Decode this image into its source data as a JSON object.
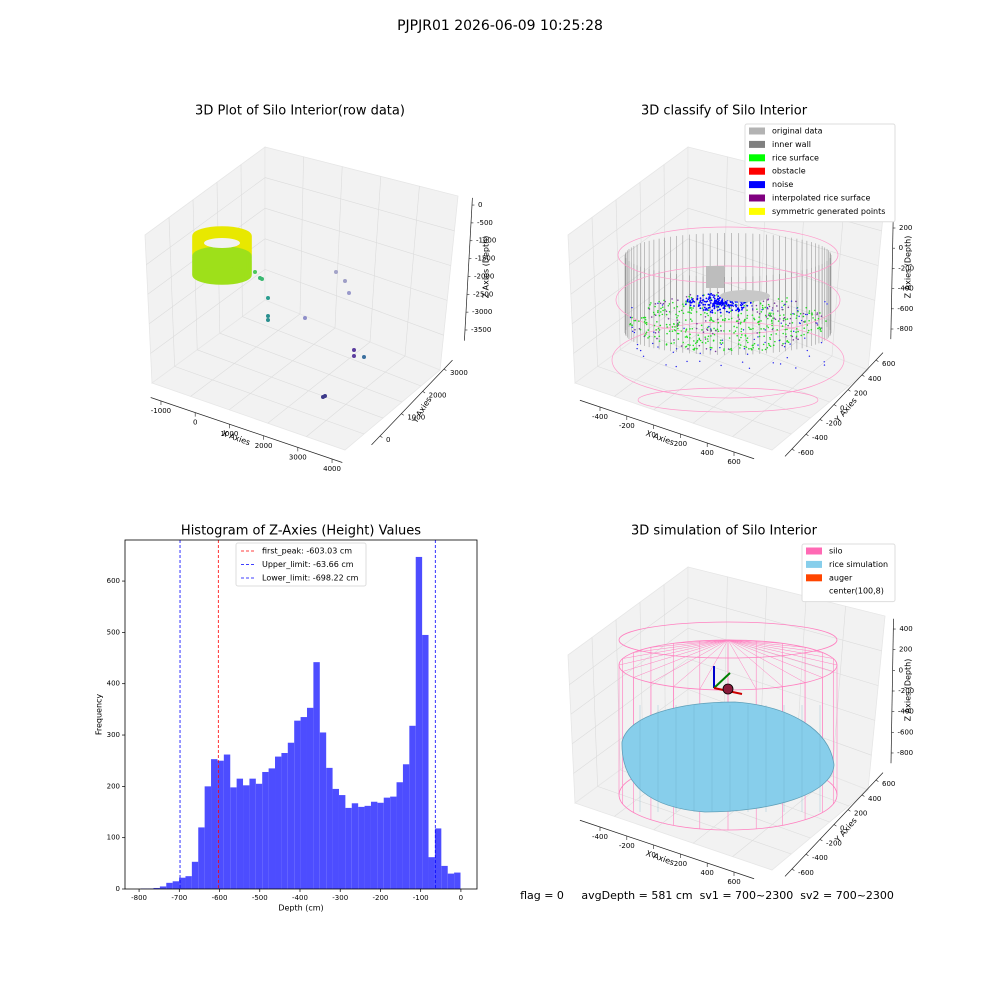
{
  "title": "PJPJR01 2026-06-09 10:25:28",
  "footer": "flag = 0     avgDepth = 581 cm  sv1 = 700~2300  sv2 = 700~2300",
  "chart_data": [
    {
      "type": "scatter3d",
      "title": "3D Plot of Silo Interior(row data)",
      "xlabel": "X Axies",
      "ylabel": "Y Axies",
      "zlabel": "Z Axies (Depth)",
      "xlim": [
        -1300,
        4300
      ],
      "xticks": [
        -1000,
        0,
        1000,
        2000,
        3000,
        4000
      ],
      "ylim": [
        -400,
        3400
      ],
      "yticks": [
        0,
        1000,
        2000,
        3000
      ],
      "zlim": [
        -3800,
        200
      ],
      "zticks": [
        0,
        -500,
        -1000,
        -1500,
        -2000,
        -2500,
        -3000,
        -3500
      ]
    },
    {
      "type": "scatter3d",
      "title": "3D classify of Silo Interior",
      "xlabel": "X Axies",
      "ylabel": "Y Axies",
      "zlabel": "Z Axies (Depth)",
      "xlim": [
        -550,
        750
      ],
      "xticks": [
        -400,
        -200,
        0,
        200,
        400,
        600
      ],
      "ylim": [
        -700,
        700
      ],
      "yticks": [
        -600,
        -400,
        -200,
        0,
        200,
        400,
        600
      ],
      "zlim": [
        -900,
        300
      ],
      "zticks": [
        200,
        0,
        -200,
        -400,
        -600,
        -800
      ],
      "legend": [
        {
          "name": "original data",
          "color": "#b3b3b3"
        },
        {
          "name": "inner wall",
          "color": "#808080"
        },
        {
          "name": "rice surface",
          "color": "#00ff00"
        },
        {
          "name": "obstacle",
          "color": "#ff0000"
        },
        {
          "name": "noise",
          "color": "#0000ff"
        },
        {
          "name": "interpolated rice surface",
          "color": "#800080"
        },
        {
          "name": "symmetric generated points",
          "color": "#ffff00"
        }
      ]
    },
    {
      "type": "histogram",
      "title": "Histogram of Z-Axies (Height) Values",
      "xlabel": "Depth (cm)",
      "ylabel": "Frequency",
      "color": "#4d4dff",
      "bins": [
        -796,
        -780.1,
        -764.2,
        -748.3,
        -732.4,
        -716.5,
        -700.6,
        -684.7,
        -668.8,
        -652.9,
        -637,
        -621.1,
        -605.2,
        -589.3,
        -573.4,
        -557.5,
        -541.6,
        -525.7,
        -509.8,
        -493.9,
        -478,
        -462.1,
        -446.2,
        -430.3,
        -414.4,
        -398.5,
        -382.6,
        -366.7,
        -350.8,
        -334.9,
        -319,
        -303.1,
        -287.2,
        -271.3,
        -255.4,
        -239.5,
        -223.6,
        -207.7,
        -191.8,
        -175.9,
        -160,
        -144.1,
        -128.2,
        -112.3,
        -96.4,
        -80.5,
        -64.6,
        -48.7,
        -32.8,
        -16.9,
        -1
      ],
      "values": [
        1,
        1,
        2,
        5,
        12,
        15,
        22,
        25,
        53,
        120,
        200,
        253,
        250,
        262,
        198,
        215,
        202,
        215,
        205,
        228,
        235,
        258,
        265,
        285,
        328,
        335,
        353,
        442,
        305,
        236,
        195,
        183,
        158,
        167,
        160,
        162,
        170,
        168,
        178,
        180,
        208,
        243,
        318,
        647,
        495,
        62,
        118,
        45,
        30,
        32
      ],
      "xlim": [
        -835,
        40
      ],
      "xticks": [
        -800,
        -700,
        -600,
        -500,
        -400,
        -300,
        -200,
        -100,
        0
      ],
      "ylim": [
        0,
        680
      ],
      "yticks": [
        0,
        100,
        200,
        300,
        400,
        500,
        600
      ],
      "vlines": [
        {
          "name": "first_peak: -603.03 cm",
          "value": -603.03,
          "color": "#ff0000"
        },
        {
          "name": "Upper_limit: -63.66 cm",
          "value": -63.66,
          "color": "#0000ff"
        },
        {
          "name": "Lower_limit: -698.22 cm",
          "value": -698.22,
          "color": "#0000ff"
        }
      ]
    },
    {
      "type": "surface3d",
      "title": "3D simulation of Silo Interior",
      "xlabel": "X Axies",
      "ylabel": "Y Axies",
      "zlabel": "Z Axies (Depth)",
      "xlim": [
        -550,
        750
      ],
      "xticks": [
        -400,
        -200,
        0,
        200,
        400,
        600
      ],
      "ylim": [
        -700,
        700
      ],
      "yticks": [
        -600,
        -400,
        -200,
        0,
        200,
        400,
        600
      ],
      "zlim": [
        -900,
        500
      ],
      "zticks": [
        400,
        200,
        0,
        -200,
        -400,
        -600,
        -800
      ],
      "legend": [
        {
          "name": "silo",
          "color": "#ff69b4"
        },
        {
          "name": "rice simulation",
          "color": "#87ceeb"
        },
        {
          "name": "auger",
          "color": "#ff4500"
        },
        {
          "name": "center(100,8)",
          "color": "#ffffff"
        }
      ]
    }
  ]
}
